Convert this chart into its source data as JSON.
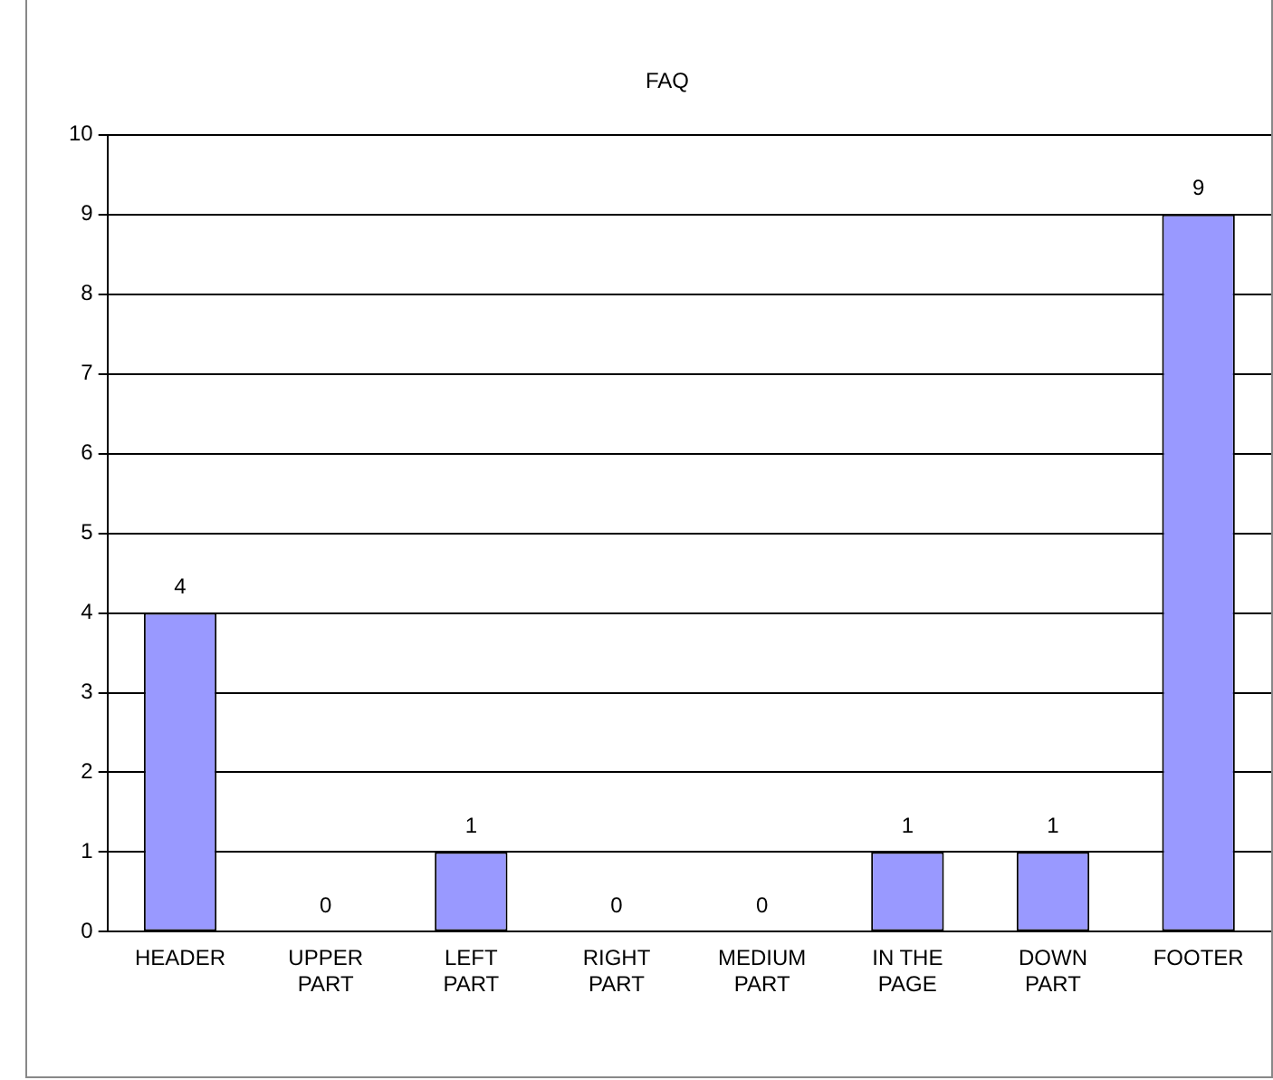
{
  "chart_data": {
    "type": "bar",
    "title": "FAQ",
    "categories": [
      "HEADER",
      "UPPER PART",
      "LEFT PART",
      "RIGHT PART",
      "MEDIUM PART",
      "IN THE PAGE",
      "DOWN PART",
      "FOOTER"
    ],
    "values": [
      4,
      0,
      1,
      0,
      0,
      1,
      1,
      9
    ],
    "color": "#9999ff",
    "ylim": [
      0,
      10
    ],
    "yticks": [
      0,
      1,
      2,
      3,
      4,
      5,
      6,
      7,
      8,
      9,
      10
    ],
    "grid": "y",
    "data_labels": true,
    "legend": false
  }
}
